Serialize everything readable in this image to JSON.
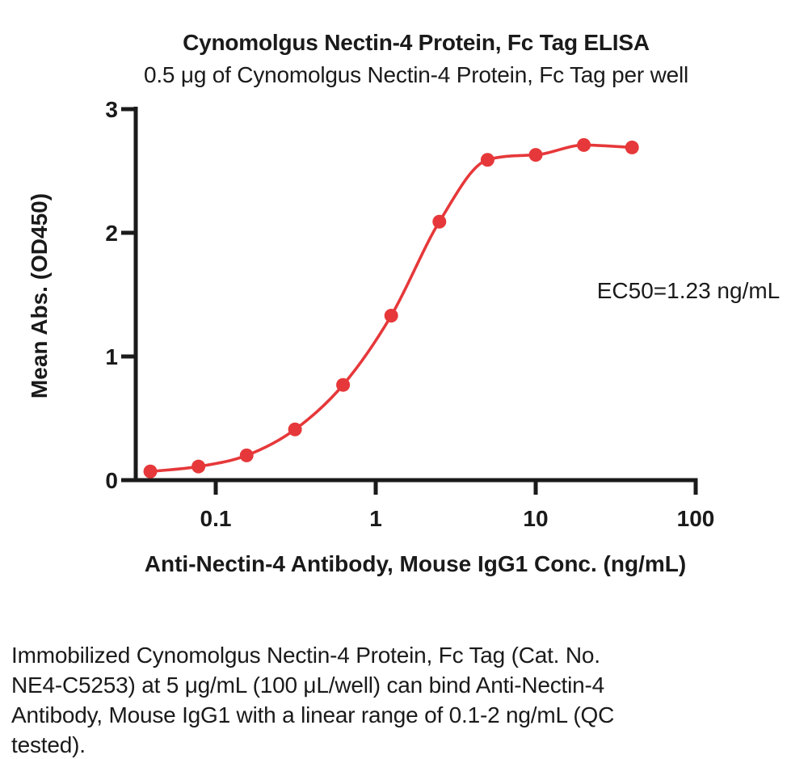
{
  "chart_data": {
    "type": "scatter",
    "title": "Cynomolgus Nectin-4 Protein, Fc Tag ELISA",
    "subtitle": "0.5 μg of Cynomolgus Nectin-4 Protein, Fc Tag per well",
    "xlabel": "Anti-Nectin-4 Antibody, Mouse IgG1 Conc. (ng/mL)",
    "ylabel": "Mean Abs. (OD450)",
    "annotation": "EC50=1.23 ng/mL",
    "x_scale": "log10",
    "xlim": [
      0.032,
      100
    ],
    "ylim": [
      0,
      3
    ],
    "x_ticks": [
      0.1,
      1,
      10,
      100
    ],
    "x_tick_labels": [
      "0.1",
      "1",
      "10",
      "100"
    ],
    "y_ticks": [
      0,
      1,
      2,
      3
    ],
    "y_tick_labels": [
      "0",
      "1",
      "2",
      "3"
    ],
    "grid": false,
    "legend": "none",
    "axis_color": "#1a1a1a",
    "series": [
      {
        "name": "Anti-Nectin-4 Antibody, Mouse IgG1",
        "color": "#E6383A",
        "marker": "circle",
        "fit": "4PL sigmoid",
        "x": [
          0.039,
          0.078,
          0.156,
          0.313,
          0.625,
          1.25,
          2.5,
          5,
          10,
          20,
          40
        ],
        "y": [
          0.07,
          0.11,
          0.2,
          0.41,
          0.77,
          1.33,
          2.09,
          2.59,
          2.63,
          2.71,
          2.69
        ]
      }
    ]
  },
  "caption": {
    "lines": [
      "Immobilized Cynomolgus Nectin-4 Protein, Fc Tag (Cat. No.",
      "NE4-C5253) at 5 μg/mL (100 μL/well) can bind Anti-Nectin-4",
      "Antibody, Mouse IgG1 with a linear range of 0.1-2 ng/mL (QC",
      "tested)."
    ]
  }
}
